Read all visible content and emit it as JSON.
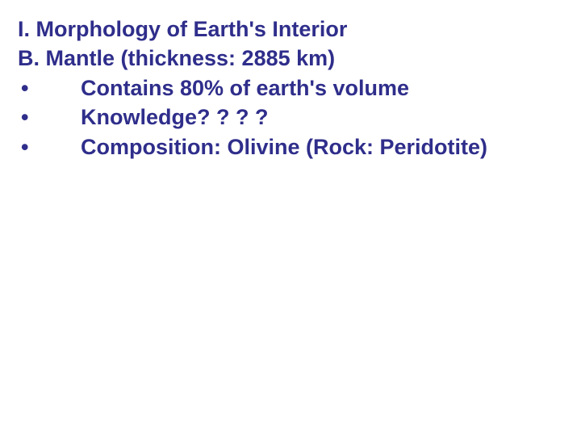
{
  "slide": {
    "text_color": "#2f2e8b",
    "background_color": "#ffffff",
    "font_size_pt": 27,
    "font_weight": "bold",
    "font_family": "Arial",
    "heading1": "I. Morphology of Earth's Interior",
    "heading2": "B. Mantle (thickness: 2885 km)",
    "bullets": [
      {
        "marker": "•",
        "text": "Contains 80% of earth's volume"
      },
      {
        "marker": "•",
        "text": "Knowledge? ? ? ?"
      },
      {
        "marker": "•",
        "text": "Composition: Olivine (Rock: Peridotite)"
      }
    ]
  }
}
